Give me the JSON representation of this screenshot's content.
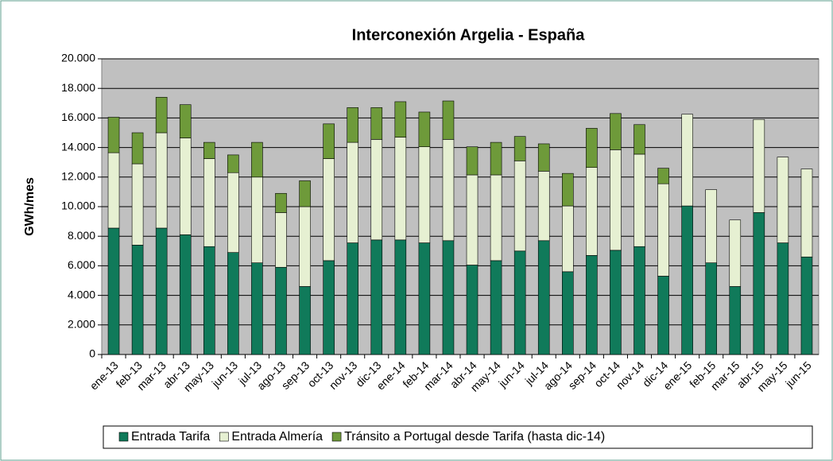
{
  "chart_data": {
    "type": "stacked_bar",
    "title": "Interconexión Argelia - España",
    "y_label": "GWh/mes",
    "categories": [
      "ene-13",
      "feb-13",
      "mar-13",
      "abr-13",
      "may-13",
      "jun-13",
      "jul-13",
      "ago-13",
      "sep-13",
      "oct-13",
      "nov-13",
      "dic-13",
      "ene-14",
      "feb-14",
      "mar-14",
      "abr-14",
      "may-14",
      "jun-14",
      "jul-14",
      "ago-14",
      "sep-14",
      "oct-14",
      "nov-14",
      "dic-14",
      "ene-15",
      "feb-15",
      "mar-15",
      "abr-15",
      "may-15",
      "jun-15"
    ],
    "series": [
      {
        "name": "Entrada Tarifa",
        "color": "#107a5a",
        "values": [
          8550,
          7400,
          8550,
          8100,
          7300,
          6900,
          6200,
          5900,
          4600,
          6350,
          7550,
          7750,
          7750,
          7550,
          7700,
          6050,
          6350,
          7000,
          7700,
          5600,
          6700,
          7050,
          7300,
          5300,
          10050,
          6200,
          4600,
          9600,
          7550,
          6600
        ]
      },
      {
        "name": "Entrada Almería",
        "color": "#e6f0d2",
        "values": [
          5100,
          5500,
          6450,
          6550,
          5950,
          5400,
          5800,
          3700,
          5400,
          6900,
          6800,
          6800,
          6950,
          6500,
          6850,
          6100,
          5800,
          6100,
          4700,
          4450,
          5950,
          6800,
          6250,
          6250,
          6200,
          4950,
          4500,
          6300,
          5800,
          5950
        ]
      },
      {
        "name": "Tránsito a Portugal desde Tarifa (hasta dic-14)",
        "color": "#6e9a3a",
        "values": [
          2400,
          2100,
          2400,
          2250,
          1100,
          1200,
          2350,
          1300,
          1750,
          2350,
          2350,
          2150,
          2400,
          2350,
          2600,
          1900,
          2200,
          1650,
          1850,
          2200,
          2650,
          2450,
          2000,
          1050,
          null,
          null,
          null,
          null,
          null,
          null
        ]
      }
    ],
    "ylim": [
      0,
      20000
    ],
    "yticks": [
      0,
      {
        "value": 2000,
        "label": "2.000"
      },
      {
        "value": 4000,
        "label": "4.000"
      },
      {
        "value": 6000,
        "label": "6.000"
      },
      {
        "value": 8000,
        "label": "8.000"
      },
      {
        "value": 10000,
        "label": "10.000"
      },
      {
        "value": 12000,
        "label": "12.000"
      },
      {
        "value": 14000,
        "label": "14.000"
      },
      {
        "value": 16000,
        "label": "16.000"
      },
      {
        "value": 18000,
        "label": "18.000"
      },
      {
        "value": 20000,
        "label": "20.000"
      }
    ],
    "grid": true,
    "legend": "bottom"
  }
}
